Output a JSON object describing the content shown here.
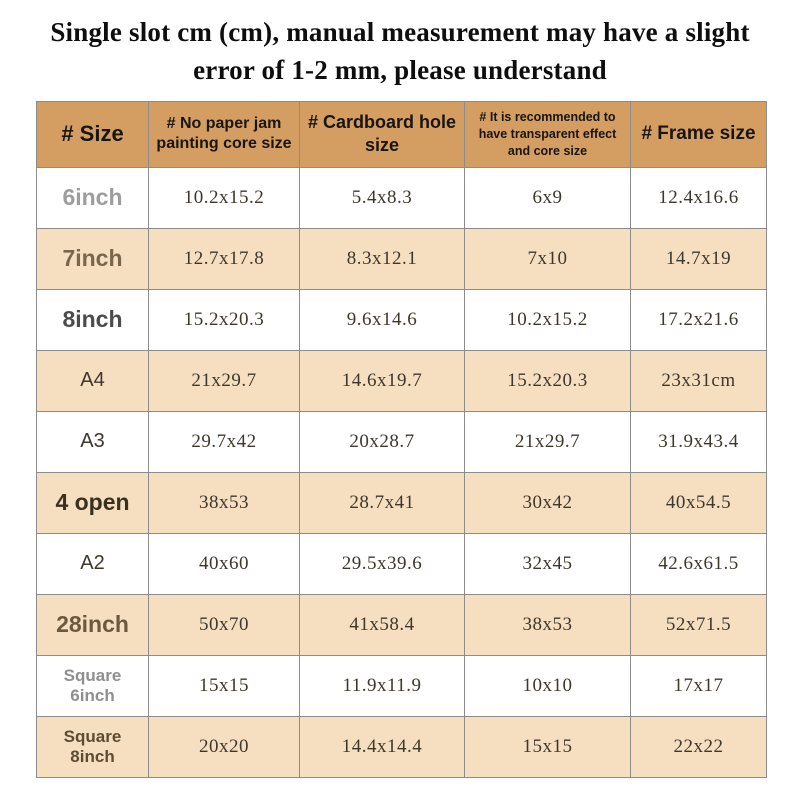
{
  "title_lines": [
    "Single slot cm (cm), manual measurement may have a slight",
    "error of 1-2 mm, please understand"
  ],
  "colors": {
    "header_bg": "#d49e63",
    "row_alt_bg": "#f6dfc0",
    "row_bg": "#ffffff",
    "border": "#8c8c8c",
    "title_text": "#0e0e0e",
    "cell_text": "#3e372c"
  },
  "chart_data": {
    "type": "table",
    "title": "Single slot cm (cm), manual measurement may have a slight error of 1-2 mm, please understand",
    "columns": [
      {
        "label": "# Size"
      },
      {
        "label": "# No paper jam painting core size"
      },
      {
        "label": "# Cardboard hole size"
      },
      {
        "label": "# It is recommended to have transparent effect and core size"
      },
      {
        "label": "# Frame size"
      }
    ],
    "rows": [
      {
        "size": "6inch",
        "core": "10.2x15.2",
        "hole": "5.4x8.3",
        "transparent": "6x9",
        "frame": "12.4x16.6",
        "label_style": "gray"
      },
      {
        "size": "7inch",
        "core": "12.7x17.8",
        "hole": "8.3x12.1",
        "transparent": "7x10",
        "frame": "14.7x19",
        "label_style": "brown"
      },
      {
        "size": "8inch",
        "core": "15.2x20.3",
        "hole": "9.6x14.6",
        "transparent": "10.2x15.2",
        "frame": "17.2x21.6",
        "label_style": "dark"
      },
      {
        "size": "A4",
        "core": "21x29.7",
        "hole": "14.6x19.7",
        "transparent": "15.2x20.3",
        "frame": "23x31cm",
        "label_style": "serif"
      },
      {
        "size": "A3",
        "core": "29.7x42",
        "hole": "20x28.7",
        "transparent": "21x29.7",
        "frame": "31.9x43.4",
        "label_style": "serif"
      },
      {
        "size": "4 open",
        "core": "38x53",
        "hole": "28.7x41",
        "transparent": "30x42",
        "frame": "40x54.5",
        "label_style": "darkest"
      },
      {
        "size": "A2",
        "core": "40x60",
        "hole": "29.5x39.6",
        "transparent": "32x45",
        "frame": "42.6x61.5",
        "label_style": "serif"
      },
      {
        "size": "28inch",
        "core": "50x70",
        "hole": "41x58.4",
        "transparent": "38x53",
        "frame": "52x71.5",
        "label_style": "brown2"
      },
      {
        "size": "Square\n6inch",
        "core": "15x15",
        "hole": "11.9x11.9",
        "transparent": "10x10",
        "frame": "17x17",
        "label_style": "gray-small"
      },
      {
        "size": "Square\n8inch",
        "core": "20x20",
        "hole": "14.4x14.4",
        "transparent": "15x15",
        "frame": "22x22",
        "label_style": "brown-small"
      }
    ]
  }
}
